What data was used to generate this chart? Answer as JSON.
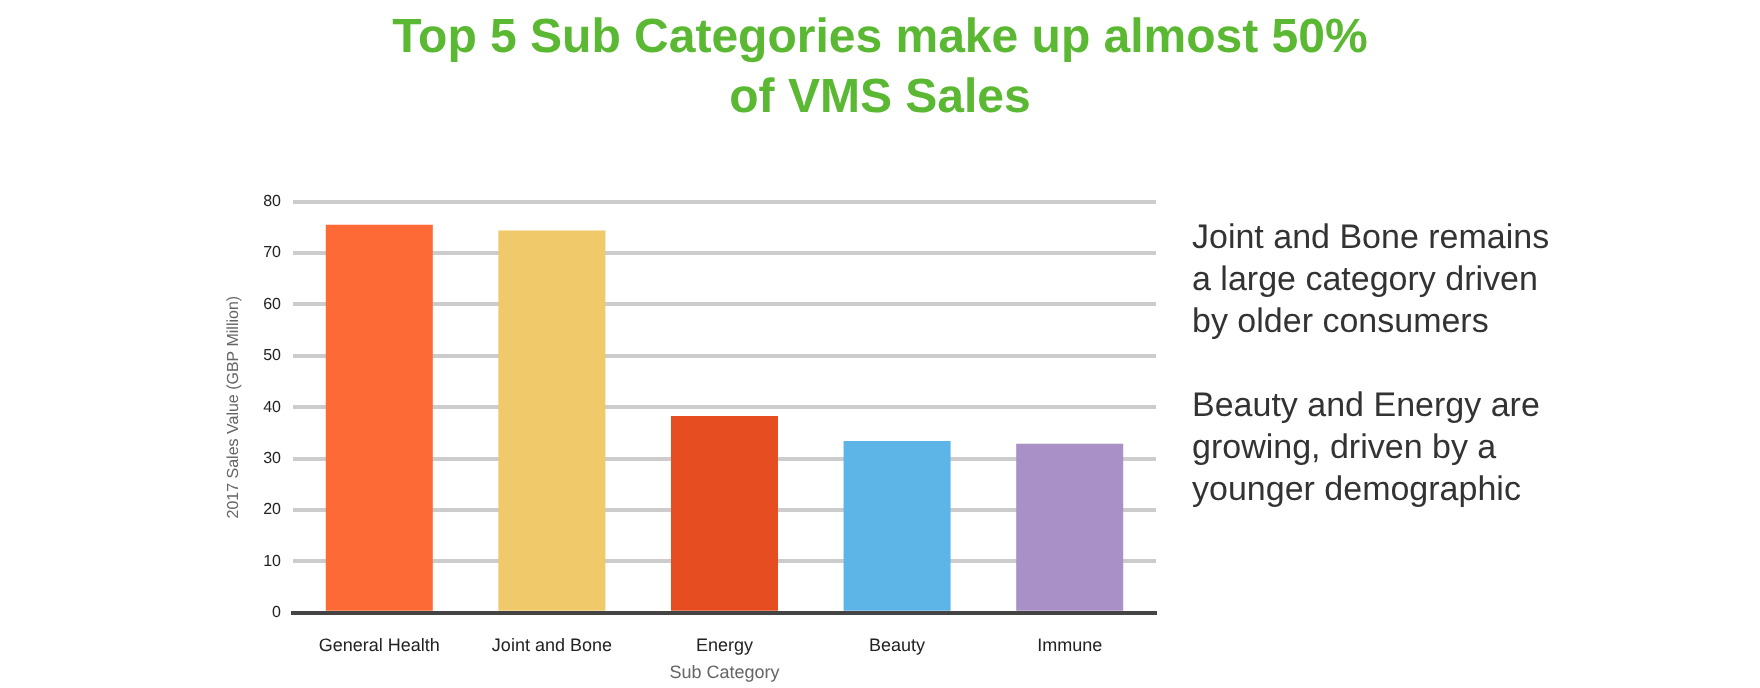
{
  "chart_data": {
    "type": "bar",
    "title": "Top 5 Sub Categories make up almost 50% of VMS Sales",
    "xlabel": "Sub Category",
    "ylabel": "2017 Sales Value (GBP Million)",
    "categories": [
      "General Health",
      "Joint and Bone",
      "Energy",
      "Beauty",
      "Immune"
    ],
    "values": [
      75.5,
      74.4,
      38.3,
      33.4,
      32.9
    ],
    "colors": [
      "#fe6a35",
      "#efc96a",
      "#e64e22",
      "#5db4e7",
      "#a990c6"
    ],
    "ylim": [
      0,
      80
    ],
    "yticks": [
      0,
      10,
      20,
      30,
      40,
      50,
      60,
      70,
      80
    ],
    "grid": "y",
    "annotations": [
      "Joint and Bone remains a large category driven by older consumers",
      "Beauty and Energy are growing, driven by a younger demographic"
    ]
  }
}
